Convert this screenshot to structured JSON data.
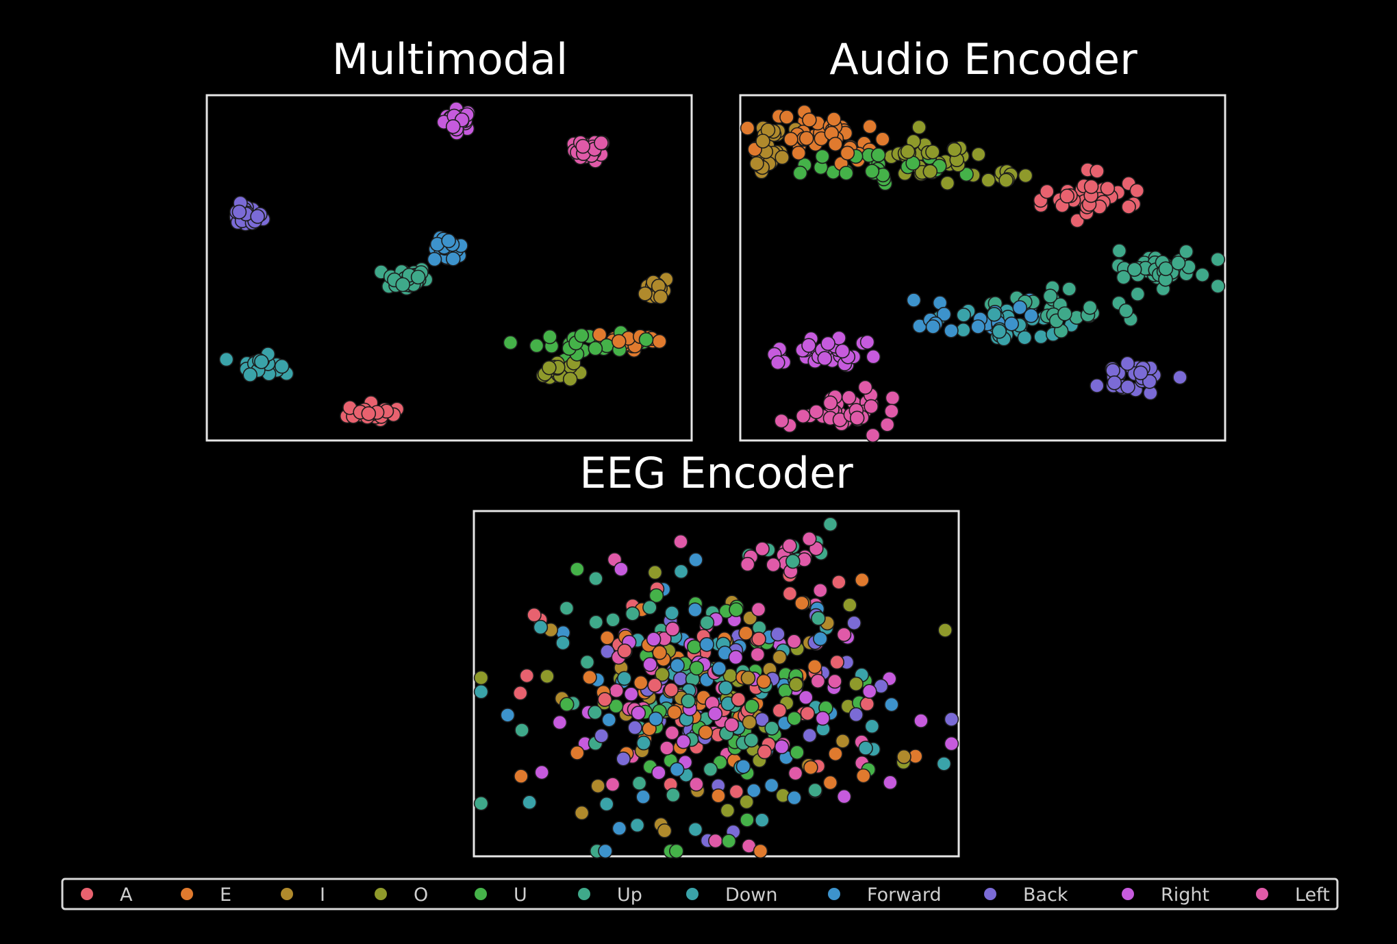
{
  "chart_data": [
    {
      "type": "scatter",
      "title": "Multimodal",
      "clusters": [
        {
          "label": "Right",
          "cx": 0.52,
          "cy": 0.93,
          "sx": 0.015,
          "sy": 0.015,
          "n": 28
        },
        {
          "label": "Left",
          "cx": 0.79,
          "cy": 0.84,
          "sx": 0.016,
          "sy": 0.015,
          "n": 30
        },
        {
          "label": "Back",
          "cx": 0.08,
          "cy": 0.65,
          "sx": 0.017,
          "sy": 0.015,
          "n": 28
        },
        {
          "label": "Forward",
          "cx": 0.5,
          "cy": 0.55,
          "sx": 0.016,
          "sy": 0.017,
          "n": 26
        },
        {
          "label": "Up",
          "cx": 0.41,
          "cy": 0.47,
          "sx": 0.022,
          "sy": 0.017,
          "n": 36
        },
        {
          "label": "I",
          "cx": 0.93,
          "cy": 0.44,
          "sx": 0.012,
          "sy": 0.018,
          "n": 22
        },
        {
          "label": "Down",
          "cx": 0.11,
          "cy": 0.22,
          "sx": 0.02,
          "sy": 0.013,
          "n": 28
        },
        {
          "label": "A",
          "cx": 0.34,
          "cy": 0.08,
          "sx": 0.025,
          "sy": 0.013,
          "n": 22
        },
        {
          "label": "O",
          "cx": 0.72,
          "cy": 0.2,
          "sx": 0.018,
          "sy": 0.014,
          "n": 22
        },
        {
          "label": "U",
          "cx": 0.8,
          "cy": 0.28,
          "sx": 0.06,
          "sy": 0.014,
          "n": 22
        },
        {
          "label": "E",
          "cx": 0.88,
          "cy": 0.29,
          "sx": 0.04,
          "sy": 0.013,
          "n": 20
        }
      ]
    },
    {
      "type": "scatter",
      "title": "Audio Encoder",
      "clusters": [
        {
          "label": "I",
          "cx": 0.06,
          "cy": 0.84,
          "sx": 0.018,
          "sy": 0.04,
          "n": 28
        },
        {
          "label": "E",
          "cx": 0.14,
          "cy": 0.89,
          "sx": 0.05,
          "sy": 0.03,
          "n": 34
        },
        {
          "label": "E",
          "cx": 0.23,
          "cy": 0.83,
          "sx": 0.025,
          "sy": 0.02,
          "n": 10
        },
        {
          "label": "U",
          "cx": 0.3,
          "cy": 0.79,
          "sx": 0.07,
          "sy": 0.025,
          "n": 24
        },
        {
          "label": "O",
          "cx": 0.4,
          "cy": 0.82,
          "sx": 0.05,
          "sy": 0.035,
          "n": 30
        },
        {
          "label": "O",
          "cx": 0.53,
          "cy": 0.76,
          "sx": 0.035,
          "sy": 0.01,
          "n": 8
        },
        {
          "label": "A",
          "cx": 0.72,
          "cy": 0.7,
          "sx": 0.055,
          "sy": 0.03,
          "n": 34
        },
        {
          "label": "Up",
          "cx": 0.87,
          "cy": 0.49,
          "sx": 0.045,
          "sy": 0.03,
          "n": 42
        },
        {
          "label": "Up",
          "cx": 0.65,
          "cy": 0.38,
          "sx": 0.07,
          "sy": 0.03,
          "n": 26
        },
        {
          "label": "Down",
          "cx": 0.53,
          "cy": 0.34,
          "sx": 0.06,
          "sy": 0.03,
          "n": 26
        },
        {
          "label": "Forward",
          "cx": 0.48,
          "cy": 0.36,
          "sx": 0.07,
          "sy": 0.03,
          "n": 22
        },
        {
          "label": "Back",
          "cx": 0.81,
          "cy": 0.19,
          "sx": 0.035,
          "sy": 0.025,
          "n": 30
        },
        {
          "label": "Right",
          "cx": 0.17,
          "cy": 0.25,
          "sx": 0.05,
          "sy": 0.025,
          "n": 32
        },
        {
          "label": "Left",
          "cx": 0.22,
          "cy": 0.09,
          "sx": 0.04,
          "sy": 0.03,
          "n": 40
        }
      ]
    },
    {
      "type": "scatter",
      "title": "EEG Encoder",
      "clusters": [
        {
          "label": "A",
          "cx": 0.5,
          "cy": 0.45,
          "sx": 0.18,
          "sy": 0.17,
          "n": 44
        },
        {
          "label": "E",
          "cx": 0.5,
          "cy": 0.45,
          "sx": 0.18,
          "sy": 0.17,
          "n": 44
        },
        {
          "label": "I",
          "cx": 0.5,
          "cy": 0.45,
          "sx": 0.18,
          "sy": 0.17,
          "n": 30
        },
        {
          "label": "O",
          "cx": 0.5,
          "cy": 0.45,
          "sx": 0.18,
          "sy": 0.17,
          "n": 30
        },
        {
          "label": "U",
          "cx": 0.5,
          "cy": 0.45,
          "sx": 0.18,
          "sy": 0.17,
          "n": 44
        },
        {
          "label": "Up",
          "cx": 0.5,
          "cy": 0.45,
          "sx": 0.18,
          "sy": 0.17,
          "n": 44
        },
        {
          "label": "Down",
          "cx": 0.5,
          "cy": 0.45,
          "sx": 0.18,
          "sy": 0.17,
          "n": 36
        },
        {
          "label": "Forward",
          "cx": 0.5,
          "cy": 0.45,
          "sx": 0.18,
          "sy": 0.17,
          "n": 40
        },
        {
          "label": "Back",
          "cx": 0.5,
          "cy": 0.45,
          "sx": 0.18,
          "sy": 0.17,
          "n": 34
        },
        {
          "label": "Right",
          "cx": 0.5,
          "cy": 0.45,
          "sx": 0.18,
          "sy": 0.17,
          "n": 40
        },
        {
          "label": "Left",
          "cx": 0.5,
          "cy": 0.45,
          "sx": 0.18,
          "sy": 0.17,
          "n": 44
        },
        {
          "label": "Left",
          "cx": 0.67,
          "cy": 0.87,
          "sx": 0.04,
          "sy": 0.04,
          "n": 14
        },
        {
          "label": "Up",
          "cx": 0.67,
          "cy": 0.87,
          "sx": 0.04,
          "sy": 0.04,
          "n": 8
        }
      ]
    }
  ],
  "legend": {
    "placement": "bottom",
    "items": [
      {
        "label": "A",
        "color": "#e8626f"
      },
      {
        "label": "E",
        "color": "#e07a2e"
      },
      {
        "label": "I",
        "color": "#b08a2c"
      },
      {
        "label": "O",
        "color": "#8f9a2b"
      },
      {
        "label": "U",
        "color": "#45b249"
      },
      {
        "label": "Up",
        "color": "#3fa98a"
      },
      {
        "label": "Down",
        "color": "#3aa3a9"
      },
      {
        "label": "Forward",
        "color": "#3d93cc"
      },
      {
        "label": "Back",
        "color": "#7b6bd6"
      },
      {
        "label": "Right",
        "color": "#c65bdd"
      },
      {
        "label": "Left",
        "color": "#e05aa8"
      }
    ]
  }
}
